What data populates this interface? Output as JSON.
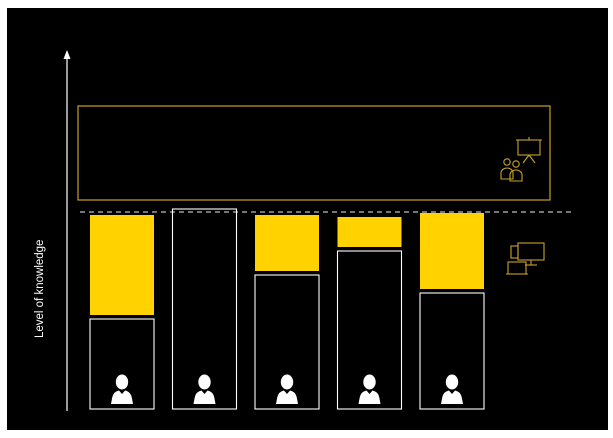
{
  "diagram": {
    "y_axis_label": "Level of knowledge",
    "colors": {
      "background": "#000000",
      "knowledge_gap": "#FFD200",
      "outline": "#FFFFFF",
      "target_zone": "#C9A227",
      "dashed_line": "#BBBBBB"
    },
    "icons": {
      "target_zone_icon": "classroom-presentation-icon",
      "gap_legend_icon": "devices-elearning-icon",
      "person_icon": "person-icon"
    },
    "learners": [
      {
        "id": "learner-1",
        "current_level": 0.45,
        "gap": 0.52
      },
      {
        "id": "learner-2",
        "current_level": 1.0,
        "gap": 0.0
      },
      {
        "id": "learner-3",
        "current_level": 0.67,
        "gap": 0.3
      },
      {
        "id": "learner-4",
        "current_level": 0.79,
        "gap": 0.17
      },
      {
        "id": "learner-5",
        "current_level": 0.58,
        "gap": 0.4
      }
    ]
  }
}
